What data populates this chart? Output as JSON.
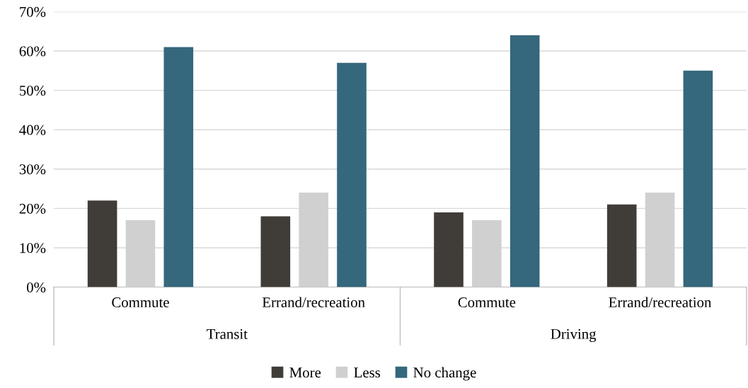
{
  "chart_data": {
    "type": "bar",
    "categories": [
      "Commute",
      "Errand/recreation",
      "Commute",
      "Errand/recreation"
    ],
    "series": [
      {
        "name": "More",
        "color": "#403d38",
        "values": [
          22,
          18,
          19,
          21
        ]
      },
      {
        "name": "Less",
        "color": "#d0d0d0",
        "values": [
          17,
          24,
          17,
          24
        ]
      },
      {
        "name": "No change",
        "color": "#35677d",
        "values": [
          61,
          57,
          64,
          55
        ]
      }
    ],
    "annotations": [
      "Transit",
      "Driving"
    ],
    "ylim": [
      0,
      70
    ],
    "yticks": [
      {
        "value": 0,
        "label": "0%"
      },
      {
        "value": 10,
        "label": "10%"
      },
      {
        "value": 20,
        "label": "20%"
      },
      {
        "value": 30,
        "label": "30%"
      },
      {
        "value": 40,
        "label": "40%"
      },
      {
        "value": 50,
        "label": "50%"
      },
      {
        "value": 60,
        "label": "60%"
      },
      {
        "value": 70,
        "label": "70%"
      }
    ],
    "grid": "y",
    "legend": "bottom"
  }
}
